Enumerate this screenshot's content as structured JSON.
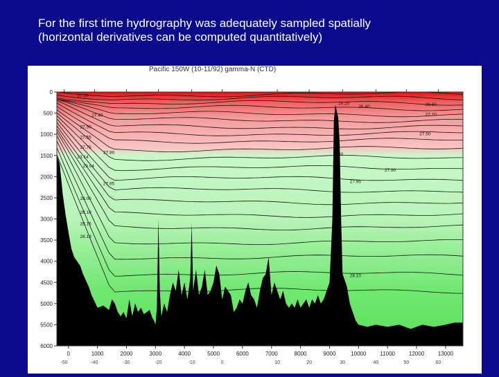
{
  "slide": {
    "title_line1": "For the first time hydrography was adequately sampled spatially",
    "title_line2": "(horizontal derivatives can be computed quantitatively)"
  },
  "chart_data": {
    "type": "heatmap",
    "title": "Pacific 150W (10-11/92) gamma-N (CTD)",
    "xlabel": "",
    "ylabel": "",
    "x_ticks": [
      0,
      1000,
      2000,
      3000,
      4000,
      5000,
      6000,
      7000,
      8000,
      9000,
      10000,
      11000,
      12000,
      13000
    ],
    "x_tick_labels": [
      "0",
      "1000",
      "2000",
      "3000",
      "4000",
      "5000",
      "6000",
      "7000",
      "8000",
      "9000",
      "10000",
      "11000",
      "12000",
      "13000"
    ],
    "xlim": [
      -400,
      13600
    ],
    "y_ticks": [
      0,
      500,
      1000,
      1500,
      2000,
      2500,
      3000,
      3500,
      4000,
      4500,
      5000,
      5500,
      6000
    ],
    "y_tick_labels": [
      "0",
      "500",
      "1000",
      "1500",
      "2000",
      "2500",
      "3000",
      "3500",
      "4000",
      "4500",
      "5000",
      "5500",
      "6000"
    ],
    "ylim": [
      0,
      6000
    ],
    "y_reversed": true,
    "latitude_ticks": [
      {
        "x": -150,
        "label": "-50"
      },
      {
        "x": 900,
        "label": "-40"
      },
      {
        "x": 2000,
        "label": "-30"
      },
      {
        "x": 3100,
        "label": "-20"
      },
      {
        "x": 4250,
        "label": "-10"
      },
      {
        "x": 5300,
        "label": "0"
      },
      {
        "x": 7200,
        "label": "10"
      },
      {
        "x": 8300,
        "label": "20"
      },
      {
        "x": 9450,
        "label": "30"
      },
      {
        "x": 10600,
        "label": "40"
      },
      {
        "x": 11650,
        "label": "50"
      },
      {
        "x": 12750,
        "label": "60"
      }
    ],
    "contour_labels": [
      {
        "x": 300,
        "depth": 120,
        "label": "27.20"
      },
      {
        "x": 9300,
        "depth": 300,
        "label": "26.20"
      },
      {
        "x": 10000,
        "depth": 380,
        "label": "26.40"
      },
      {
        "x": 12300,
        "depth": 330,
        "label": "26.80"
      },
      {
        "x": 12300,
        "depth": 560,
        "label": "27.20"
      },
      {
        "x": 400,
        "depth": 860,
        "label": "27.50"
      },
      {
        "x": 800,
        "depth": 580,
        "label": "27.40"
      },
      {
        "x": 12100,
        "depth": 1020,
        "label": "27.50"
      },
      {
        "x": 400,
        "depth": 1100,
        "label": "27.55"
      },
      {
        "x": 400,
        "depth": 1340,
        "label": "27.75"
      },
      {
        "x": 300,
        "depth": 1570,
        "label": "23.14"
      },
      {
        "x": 1200,
        "depth": 1460,
        "label": "27.80"
      },
      {
        "x": 500,
        "depth": 1780,
        "label": "29.04"
      },
      {
        "x": 9300,
        "depth": 1500,
        "label": "30"
      },
      {
        "x": 10900,
        "depth": 1880,
        "label": "27.90"
      },
      {
        "x": 1200,
        "depth": 2200,
        "label": "27.95"
      },
      {
        "x": 9700,
        "depth": 2150,
        "label": "27.95"
      },
      {
        "x": 400,
        "depth": 2550,
        "label": "28.00"
      },
      {
        "x": 400,
        "depth": 2880,
        "label": "28.10"
      },
      {
        "x": 400,
        "depth": 3150,
        "label": "28.16"
      },
      {
        "x": 400,
        "depth": 3450,
        "label": "28.13"
      },
      {
        "x": 9700,
        "depth": 4370,
        "label": "28.10"
      }
    ],
    "grid": false,
    "legend": "none",
    "colors": {
      "light_layer": "#f08a8a",
      "pink_layer": "#f8c8c8",
      "green_layer": "#c8f8c8",
      "deep_green": "#60e860",
      "surface_red": "#e01010",
      "topography": "#000000",
      "contour_line": "#111111"
    }
  }
}
